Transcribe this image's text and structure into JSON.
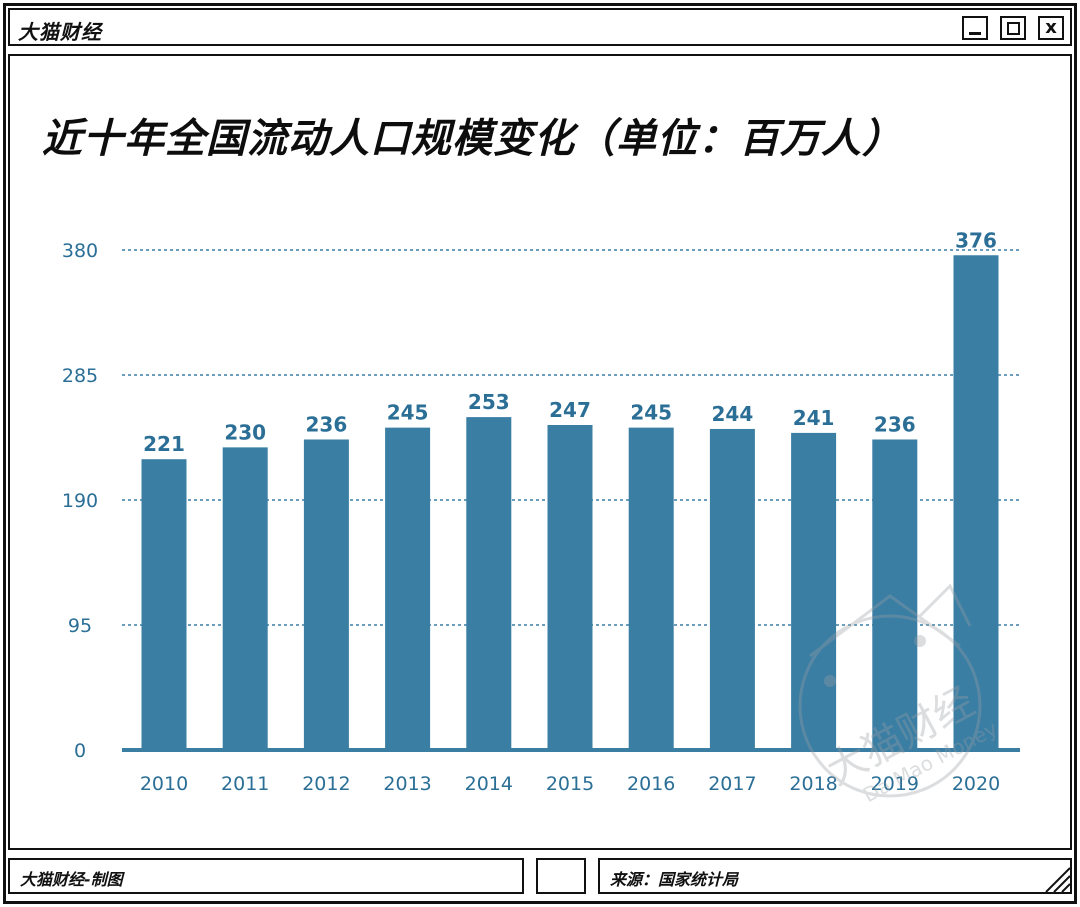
{
  "window": {
    "title": "大猫财经",
    "buttons": {
      "minimize_icon": "minimize-icon",
      "maximize_icon": "maximize-icon",
      "close_label": "x"
    }
  },
  "colors": {
    "bar": "#3a7ea4",
    "label": "#2b6f97",
    "axis": "#3a7ea4",
    "grid": "#3a7ea4"
  },
  "chart_data": {
    "type": "bar",
    "title": "近十年全国流动人口规模变化（单位：百万人）",
    "categories": [
      "2010",
      "2011",
      "2012",
      "2013",
      "2014",
      "2015",
      "2016",
      "2017",
      "2018",
      "2019",
      "2020"
    ],
    "values": [
      221,
      230,
      236,
      245,
      253,
      247,
      245,
      244,
      241,
      236,
      376
    ],
    "data_labels": [
      "221",
      "230",
      "236",
      "245",
      "253",
      "247",
      "245",
      "244",
      "241",
      "236",
      "376"
    ],
    "y_ticks": [
      0,
      95,
      190,
      285,
      380
    ],
    "y_tick_labels": [
      "0",
      "95",
      "190",
      "285",
      "380"
    ],
    "ylim": [
      0,
      380
    ],
    "grid": true,
    "xlabel": "",
    "ylabel": ""
  },
  "watermark": {
    "text": "大猫财经",
    "subtext": "Da Mao Money"
  },
  "footer": {
    "left_text": "大猫财经-制图",
    "right_text": "来源：国家统计局"
  }
}
